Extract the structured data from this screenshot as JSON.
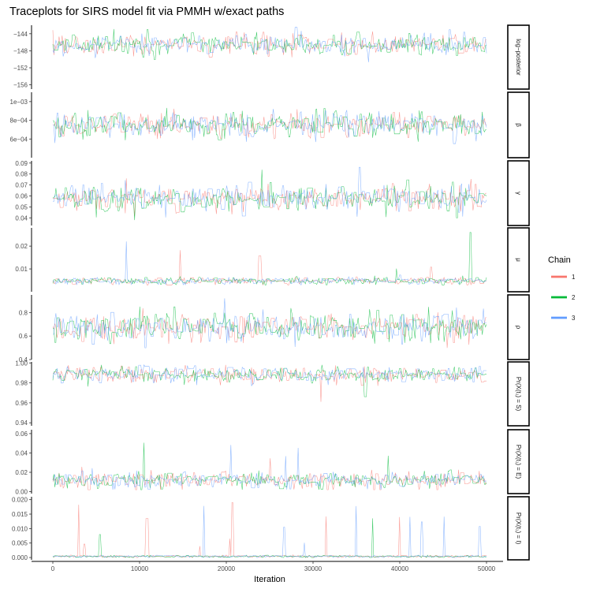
{
  "chart_data": {
    "type": "line",
    "title": "Traceplots for SIRS model fit via PMMH w/exact paths",
    "xlabel": "Iteration",
    "xlim": [
      0,
      50000
    ],
    "x_ticks": [
      "0",
      "10000",
      "20000",
      "30000",
      "40000",
      "50000"
    ],
    "x_tick_values": [
      0,
      10000,
      20000,
      30000,
      40000,
      50000
    ],
    "legend": {
      "title": "Chain",
      "position": "right",
      "entries": [
        {
          "name": "1",
          "color": "#F8766D"
        },
        {
          "name": "2",
          "color": "#00BA38"
        },
        {
          "name": "3",
          "color": "#619CFF"
        }
      ]
    },
    "grid": false,
    "panels": [
      {
        "label": "log−posterior",
        "ylim": [
          -157,
          -142
        ],
        "ticks": [
          {
            "v": -144,
            "t": "−144"
          },
          {
            "v": -148,
            "t": "−148"
          },
          {
            "v": -152,
            "t": "−152"
          },
          {
            "v": -156,
            "t": "−156"
          }
        ],
        "center": -146.5,
        "spread": 1.2,
        "jump": 2.2,
        "floor": null,
        "ceil": -142.5,
        "spike_chance": 0.004
      },
      {
        "label": "β",
        "ylim": [
          0.0004,
          0.0011
        ],
        "ticks": [
          {
            "v": 0.0006,
            "t": "6e−04"
          },
          {
            "v": 0.0008,
            "t": "8e−04"
          },
          {
            "v": 0.001,
            "t": "1e−03"
          }
        ],
        "center": 0.00075,
        "spread": 7e-05,
        "jump": 0.00012,
        "floor": 0.00055,
        "ceil": 0.00108,
        "spike_chance": 0.003
      },
      {
        "label": "γ",
        "ylim": [
          0.033,
          0.092
        ],
        "ticks": [
          {
            "v": 0.04,
            "t": "0.04"
          },
          {
            "v": 0.05,
            "t": "0.05"
          },
          {
            "v": 0.06,
            "t": "0.06"
          },
          {
            "v": 0.07,
            "t": "0.07"
          },
          {
            "v": 0.08,
            "t": "0.08"
          },
          {
            "v": 0.09,
            "t": "0.09"
          }
        ],
        "center": 0.058,
        "spread": 0.006,
        "jump": 0.012,
        "floor": 0.038,
        "ceil": 0.09,
        "spike_chance": 0.003
      },
      {
        "label": "μ",
        "ylim": [
          0.0,
          0.028
        ],
        "ticks": [
          {
            "v": 0.01,
            "t": "0.01"
          },
          {
            "v": 0.02,
            "t": "0.02"
          }
        ],
        "center": 0.0048,
        "spread": 0.0008,
        "jump": 0.0025,
        "floor": 0.003,
        "ceil": 0.027,
        "spike_chance": 0.006
      },
      {
        "label": "ρ",
        "ylim": [
          0.4,
          0.95
        ],
        "ticks": [
          {
            "v": 0.4,
            "t": "0.4"
          },
          {
            "v": 0.6,
            "t": "0.6"
          },
          {
            "v": 0.8,
            "t": "0.8"
          }
        ],
        "center": 0.68,
        "spread": 0.06,
        "jump": 0.13,
        "floor": 0.44,
        "ceil": 0.93,
        "spike_chance": 0.003
      },
      {
        "label": "Pr(X(t₁) = S)",
        "ylim": [
          0.937,
          1.001
        ],
        "ticks": [
          {
            "v": 0.94,
            "t": "0.94"
          },
          {
            "v": 0.96,
            "t": "0.96"
          },
          {
            "v": 0.98,
            "t": "0.98"
          },
          {
            "v": 1.0,
            "t": "1.00"
          }
        ],
        "center": 0.988,
        "spread": 0.004,
        "jump": 0.014,
        "floor": 0.94,
        "ceil": 0.998,
        "spike_chance": 0.006
      },
      {
        "label": "Pr(X(t₁) = E)",
        "ylim": [
          -0.002,
          0.064
        ],
        "ticks": [
          {
            "v": 0.0,
            "t": "0.00"
          },
          {
            "v": 0.02,
            "t": "0.02"
          },
          {
            "v": 0.04,
            "t": "0.04"
          },
          {
            "v": 0.06,
            "t": "0.06"
          }
        ],
        "center": 0.012,
        "spread": 0.004,
        "jump": 0.012,
        "floor": 0.002,
        "ceil": 0.062,
        "spike_chance": 0.006
      },
      {
        "label": "Pr(X(t₁) = I)",
        "ylim": [
          -0.0008,
          0.021
        ],
        "ticks": [
          {
            "v": 0.0,
            "t": "0.000"
          },
          {
            "v": 0.005,
            "t": "0.005"
          },
          {
            "v": 0.01,
            "t": "0.010"
          },
          {
            "v": 0.015,
            "t": "0.015"
          },
          {
            "v": 0.02,
            "t": "0.020"
          }
        ],
        "center": 0.0004,
        "spread": 0.0002,
        "jump": 0.0015,
        "floor": 0.0,
        "ceil": 0.0205,
        "spike_chance": 0.012
      }
    ]
  }
}
